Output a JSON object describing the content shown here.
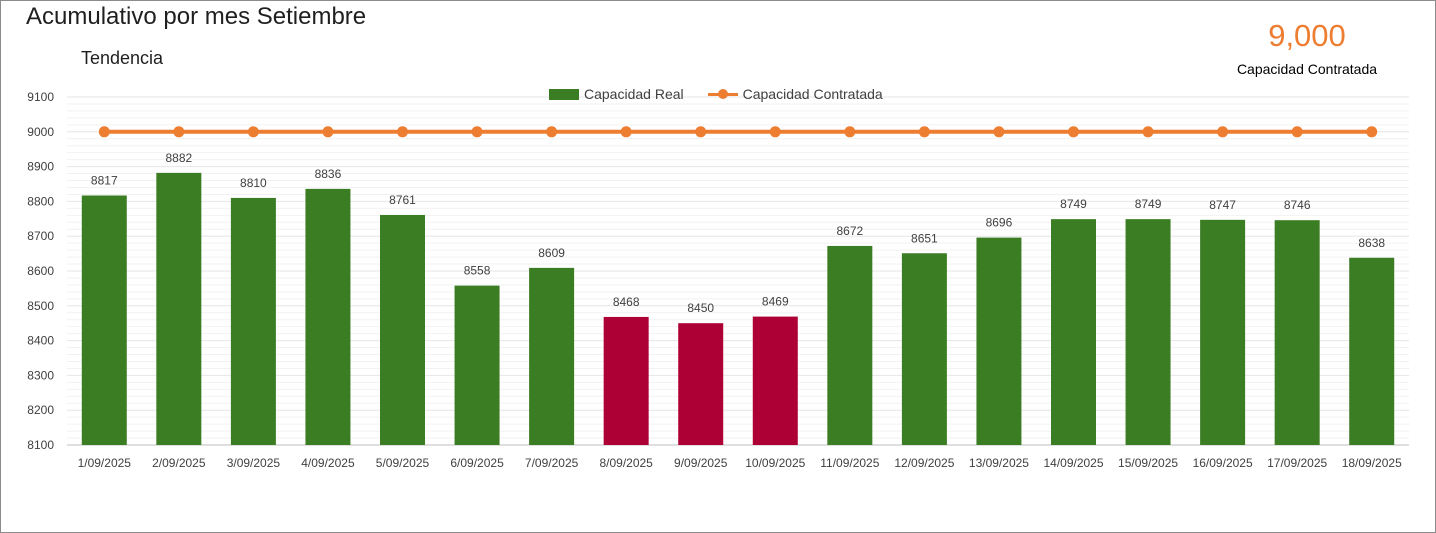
{
  "header": {
    "title": "Acumulativo por mes Setiembre",
    "subtitle": "Tendencia"
  },
  "kpi": {
    "value": "9,000",
    "label": "Capacidad Contratada"
  },
  "colors": {
    "bar_ok": "#3b7d23",
    "bar_low": "#ad0034",
    "line": "#ed7d31",
    "grid": "#e6e6e6",
    "axis_text": "#404040"
  },
  "chart_data": {
    "type": "bar",
    "title": "Acumulativo por mes Setiembre",
    "subtitle": "Tendencia",
    "xlabel": "",
    "ylabel": "",
    "ylim": [
      8100,
      9100
    ],
    "yticks": [
      8100,
      8200,
      8300,
      8400,
      8500,
      8600,
      8700,
      8800,
      8900,
      9000,
      9100
    ],
    "grid": true,
    "legend_position": "top-center",
    "categories": [
      "1/09/2025",
      "2/09/2025",
      "3/09/2025",
      "4/09/2025",
      "5/09/2025",
      "6/09/2025",
      "7/09/2025",
      "8/09/2025",
      "9/09/2025",
      "10/09/2025",
      "11/09/2025",
      "12/09/2025",
      "13/09/2025",
      "14/09/2025",
      "15/09/2025",
      "16/09/2025",
      "17/09/2025",
      "18/09/2025"
    ],
    "series": [
      {
        "name": "Capacidad Real",
        "type": "bar",
        "values": [
          8817,
          8882,
          8810,
          8836,
          8761,
          8558,
          8609,
          8468,
          8450,
          8469,
          8672,
          8651,
          8696,
          8749,
          8749,
          8747,
          8746,
          8638
        ],
        "highlight": [
          false,
          false,
          false,
          false,
          false,
          false,
          false,
          true,
          true,
          true,
          false,
          false,
          false,
          false,
          false,
          false,
          false,
          false
        ]
      },
      {
        "name": "Capacidad Contratada",
        "type": "line",
        "values": [
          9000,
          9000,
          9000,
          9000,
          9000,
          9000,
          9000,
          9000,
          9000,
          9000,
          9000,
          9000,
          9000,
          9000,
          9000,
          9000,
          9000,
          9000
        ]
      }
    ]
  }
}
